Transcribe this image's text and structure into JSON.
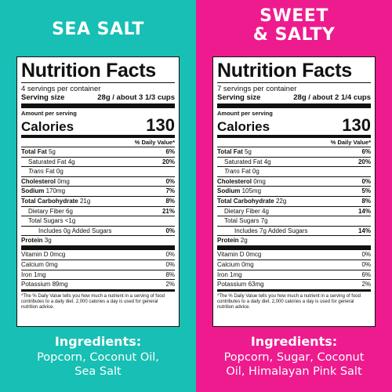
{
  "panels": [
    {
      "flavor_lines": [
        "SEA SALT"
      ],
      "color": "#17bfb4",
      "title": "Nutrition Facts",
      "servings": "4 servings per container",
      "serving_size_label": "Serving size",
      "serving_size_value": "28g / about 3 1/3 cups",
      "amount_per_serving": "Amount per serving",
      "calories_label": "Calories",
      "calories": "130",
      "dv_header": "% Daily Value*",
      "rows": [
        {
          "label": "Total Fat",
          "amount": "5g",
          "dv": "6%"
        },
        {
          "label": "Saturated Fat",
          "amount": "4g",
          "dv": "20%"
        },
        {
          "label": "Trans",
          "amount": "Fat 0g",
          "dv": ""
        },
        {
          "label": "Cholesterol",
          "amount": "0mg",
          "dv": "0%"
        },
        {
          "label": "Sodium",
          "amount": "170mg",
          "dv": "7%"
        },
        {
          "label": "Total Carbohydrate",
          "amount": "21g",
          "dv": "8%"
        },
        {
          "label": "Dietary Fiber",
          "amount": "6g",
          "dv": "21%"
        },
        {
          "label": "Total Sugars",
          "amount": "<1g",
          "dv": ""
        },
        {
          "label": "Includes 0g Added Sugars",
          "amount": "",
          "dv": "0%"
        },
        {
          "label": "Protein",
          "amount": "3g",
          "dv": ""
        }
      ],
      "vitamins": [
        {
          "label": "Vitamin D 0mcg",
          "dv": "0%"
        },
        {
          "label": "Calcium 0mg",
          "dv": "0%"
        },
        {
          "label": "Iron 1mg",
          "dv": "8%"
        },
        {
          "label": "Potassium 89mg",
          "dv": "2%"
        }
      ],
      "footnote": "*The % Daily Value tells you how much a nutrient in a serving of food contributes to a daily diet. 2,000 calories a day is used for general nutrition advice.",
      "ingredients_title": "Ingredients:",
      "ingredients_lines": [
        "Popcorn, Coconut Oil,",
        "Sea Salt"
      ]
    },
    {
      "flavor_lines": [
        "SWEET",
        "& SALTY"
      ],
      "color": "#ee1b8e",
      "title": "Nutrition Facts",
      "servings": "7 servings per container",
      "serving_size_label": "Serving size",
      "serving_size_value": "28g / about 2 1/4 cups",
      "amount_per_serving": "Amount per serving",
      "calories_label": "Calories",
      "calories": "130",
      "dv_header": "% Daily Value*",
      "rows": [
        {
          "label": "Total Fat",
          "amount": "5g",
          "dv": "6%"
        },
        {
          "label": "Saturated Fat",
          "amount": "4g",
          "dv": "20%"
        },
        {
          "label": "Trans",
          "amount": "Fat 0g",
          "dv": ""
        },
        {
          "label": "Cholesterol",
          "amount": "0mg",
          "dv": "0%"
        },
        {
          "label": "Sodium",
          "amount": "105mg",
          "dv": "5%"
        },
        {
          "label": "Total Carbohydrate",
          "amount": "22g",
          "dv": "8%"
        },
        {
          "label": "Dietary Fiber",
          "amount": "4g",
          "dv": "14%"
        },
        {
          "label": "Total Sugars",
          "amount": "7g",
          "dv": ""
        },
        {
          "label": "Includes 7g Added Sugars",
          "amount": "",
          "dv": "14%"
        },
        {
          "label": "Protein",
          "amount": "2g",
          "dv": ""
        }
      ],
      "vitamins": [
        {
          "label": "Vitamin D 0mcg",
          "dv": "0%"
        },
        {
          "label": "Calcium 0mg",
          "dv": "0%"
        },
        {
          "label": "Iron 1mg",
          "dv": "6%"
        },
        {
          "label": "Potassium 63mg",
          "dv": "2%"
        }
      ],
      "footnote": "*The % Daily Value tells you how much a nutrient in a serving of food contributes to a daily diet. 2,000 calories a day is used for general nutrition advice.",
      "ingredients_title": "Ingredients:",
      "ingredients_lines": [
        "Popcorn, Sugar, Coconut",
        "Oil, Himalayan Pink Salt"
      ]
    }
  ]
}
